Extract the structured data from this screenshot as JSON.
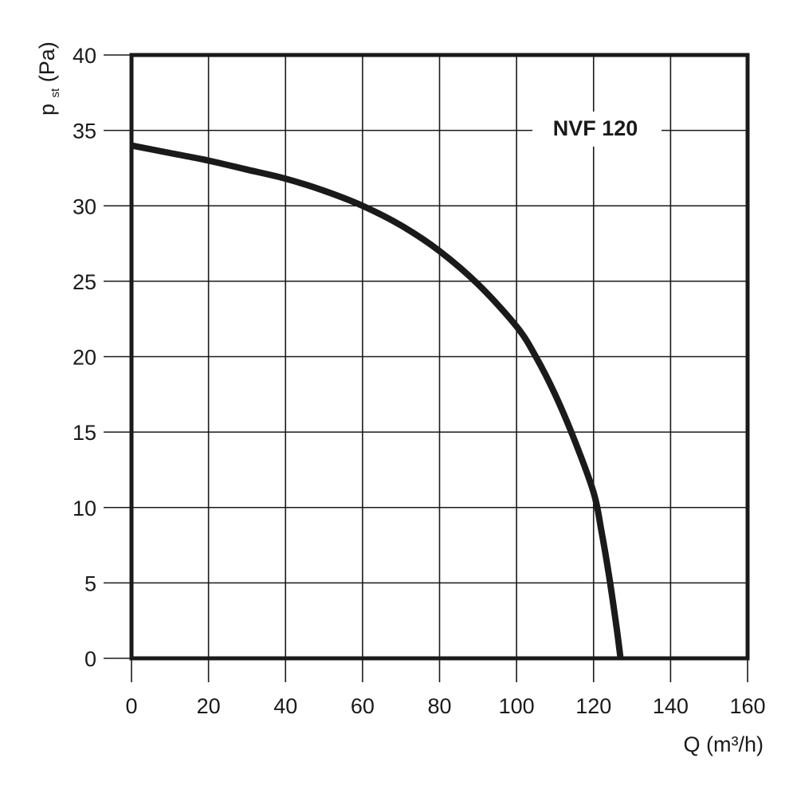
{
  "chart_data": {
    "type": "line",
    "series": [
      {
        "name": "NVF 120",
        "x": [
          0,
          10,
          20,
          30,
          40,
          50,
          60,
          70,
          80,
          90,
          100,
          105,
          110,
          115,
          120,
          122,
          124,
          126,
          127
        ],
        "y": [
          34,
          33.5,
          33,
          32.4,
          31.8,
          31,
          30,
          28.7,
          27,
          24.8,
          22,
          20,
          17.5,
          14.5,
          11,
          8.5,
          5.5,
          2,
          0
        ]
      }
    ],
    "xlabel": "Q (m³/h)",
    "ylabel_main": "p",
    "ylabel_sub": "st",
    "ylabel_unit": "(Pa)",
    "xlim": [
      0,
      160
    ],
    "ylim": [
      0,
      40
    ],
    "xticks": [
      "0",
      "20",
      "40",
      "60",
      "80",
      "100",
      "120",
      "140",
      "160"
    ],
    "yticks": [
      "0",
      "5",
      "10",
      "15",
      "20",
      "25",
      "30",
      "35",
      "40"
    ],
    "grid": true,
    "legend": "top-right",
    "line_color": "#1a1a1a"
  }
}
